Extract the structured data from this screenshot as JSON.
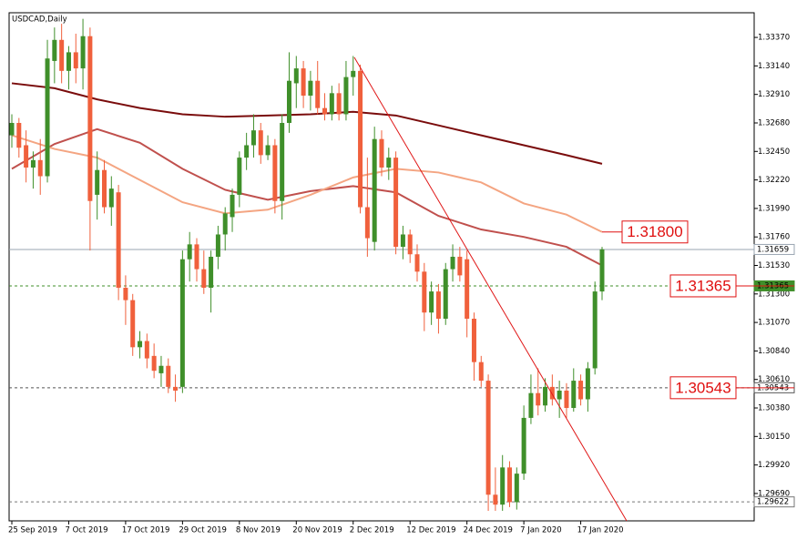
{
  "chart_data": {
    "type": "candlestick",
    "title": "USDCAD,Daily",
    "categories": [
      "25 Sep 2019",
      null,
      null,
      null,
      null,
      null,
      null,
      null,
      "7 Oct 2019",
      null,
      null,
      null,
      null,
      null,
      null,
      null,
      "17 Oct 2019",
      null,
      null,
      null,
      null,
      null,
      null,
      null,
      "29 Oct 2019",
      null,
      null,
      null,
      null,
      null,
      null,
      null,
      "8 Nov 2019",
      null,
      null,
      null,
      null,
      null,
      null,
      null,
      "20 Nov 2019",
      null,
      null,
      null,
      null,
      null,
      null,
      null,
      "2 Dec 2019",
      null,
      null,
      null,
      null,
      null,
      null,
      null,
      "12 Dec 2019",
      null,
      null,
      null,
      null,
      null,
      null,
      null,
      "24 Dec 2019",
      null,
      null,
      null,
      null,
      null,
      null,
      null,
      "7 Jan 2020",
      null,
      null,
      null,
      null,
      null,
      null,
      null,
      "17 Jan 2020",
      null,
      null,
      null
    ],
    "open": [
      1.3258,
      1.3268,
      1.325,
      1.3232,
      1.3238,
      1.3225,
      1.3318,
      1.3335,
      1.331,
      1.3325,
      1.3312,
      1.3338,
      1.321,
      1.323,
      1.32,
      1.3212,
      1.3135,
      1.3125,
      1.3087,
      1.3092,
      1.308,
      1.3066,
      1.3072,
      1.3055,
      1.3055,
      1.3158,
      1.317,
      1.315,
      1.3135,
      1.316,
      1.3178,
      1.3192,
      1.321,
      1.324,
      1.325,
      1.3262,
      1.3242,
      1.325,
      1.3205,
      1.3268,
      1.33,
      1.3312,
      1.329,
      1.3302,
      1.328,
      1.3275,
      1.3292,
      1.3275,
      1.3305,
      1.331,
      1.32,
      1.3172,
      1.3255,
      1.3232,
      1.324,
      1.3168,
      1.3178,
      1.3162,
      1.3148,
      1.3115,
      1.3132,
      1.311,
      1.315,
      1.316,
      1.3158,
      1.311,
      1.3075,
      1.306,
      1.2968,
      1.296,
      1.299,
      1.2962,
      1.2985,
      1.303,
      1.305,
      1.304,
      1.3055,
      1.3045,
      1.3052,
      1.3038,
      1.306,
      1.3045,
      1.307,
      1.3132
    ],
    "high": [
      1.3275,
      1.3272,
      1.3262,
      1.3245,
      1.3255,
      1.3335,
      1.3345,
      1.3348,
      1.333,
      1.334,
      1.3352,
      1.3345,
      1.3245,
      1.3238,
      1.3225,
      1.3218,
      1.3145,
      1.313,
      1.31,
      1.3098,
      1.309,
      1.308,
      1.3078,
      1.3065,
      1.3165,
      1.318,
      1.3175,
      1.3165,
      1.3165,
      1.3185,
      1.32,
      1.3215,
      1.3245,
      1.326,
      1.3275,
      1.3268,
      1.3258,
      1.3255,
      1.3275,
      1.3325,
      1.3322,
      1.3318,
      1.331,
      1.3318,
      1.3292,
      1.3298,
      1.33,
      1.3318,
      1.3322,
      1.3315,
      1.324,
      1.3265,
      1.3262,
      1.3248,
      1.3245,
      1.3185,
      1.3182,
      1.317,
      1.3155,
      1.314,
      1.3138,
      1.3155,
      1.317,
      1.3168,
      1.3165,
      1.3115,
      1.308,
      1.3065,
      1.299,
      1.3,
      1.2995,
      1.299,
      1.304,
      1.3065,
      1.307,
      1.3062,
      1.3065,
      1.306,
      1.3058,
      1.307,
      1.3065,
      1.3075,
      1.314,
      1.3168
    ],
    "low": [
      1.3248,
      1.324,
      1.322,
      1.3215,
      1.321,
      1.322,
      1.33,
      1.33,
      1.3295,
      1.33,
      1.3295,
      1.3165,
      1.319,
      1.3195,
      1.3185,
      1.3125,
      1.3105,
      1.308,
      1.3078,
      1.307,
      1.3062,
      1.3055,
      1.305,
      1.3043,
      1.305,
      1.314,
      1.314,
      1.313,
      1.3115,
      1.315,
      1.3165,
      1.318,
      1.32,
      1.323,
      1.324,
      1.3235,
      1.3238,
      1.3195,
      1.319,
      1.326,
      1.328,
      1.328,
      1.3278,
      1.3275,
      1.327,
      1.327,
      1.327,
      1.327,
      1.329,
      1.3195,
      1.316,
      1.3165,
      1.3225,
      1.3222,
      1.3162,
      1.3158,
      1.3155,
      1.314,
      1.31,
      1.3105,
      1.3098,
      1.3105,
      1.314,
      1.314,
      1.3095,
      1.306,
      1.3055,
      1.2955,
      1.2955,
      1.2955,
      1.2958,
      1.2956,
      1.298,
      1.3025,
      1.3032,
      1.3035,
      1.304,
      1.303,
      1.303,
      1.3035,
      1.304,
      1.3035,
      1.3065,
      1.3125
    ],
    "close": [
      1.3268,
      1.3248,
      1.3232,
      1.3238,
      1.3225,
      1.332,
      1.3335,
      1.331,
      1.3325,
      1.3312,
      1.3338,
      1.3205,
      1.323,
      1.32,
      1.3215,
      1.3135,
      1.3125,
      1.3087,
      1.3092,
      1.3078,
      1.3068,
      1.3072,
      1.3055,
      1.3052,
      1.3158,
      1.317,
      1.315,
      1.3135,
      1.316,
      1.3178,
      1.3195,
      1.321,
      1.324,
      1.325,
      1.3262,
      1.3242,
      1.325,
      1.3205,
      1.3268,
      1.3302,
      1.3312,
      1.329,
      1.3302,
      1.328,
      1.3275,
      1.3292,
      1.3275,
      1.3305,
      1.331,
      1.32,
      1.3175,
      1.3255,
      1.3232,
      1.324,
      1.3168,
      1.3178,
      1.3162,
      1.3148,
      1.3115,
      1.3132,
      1.311,
      1.315,
      1.316,
      1.3145,
      1.311,
      1.3075,
      1.306,
      1.2968,
      1.296,
      1.299,
      1.2962,
      1.2985,
      1.303,
      1.305,
      1.304,
      1.3055,
      1.3045,
      1.3052,
      1.3038,
      1.306,
      1.3045,
      1.307,
      1.3132,
      1.3166
    ],
    "up_color": "#3f8f2a",
    "down_color": "#f0603c",
    "moving_averages": [
      {
        "color": "#7a0c0c",
        "x": [
          0,
          6,
          12,
          18,
          24,
          30,
          36,
          42,
          48,
          54,
          60,
          66,
          72,
          78,
          83
        ],
        "values": [
          1.33,
          1.3296,
          1.3287,
          1.328,
          1.3275,
          1.3273,
          1.3274,
          1.3275,
          1.3277,
          1.3274,
          1.3266,
          1.3258,
          1.325,
          1.3242,
          1.3235
        ]
      },
      {
        "color": "#c0504d",
        "x": [
          0,
          6,
          12,
          18,
          24,
          30,
          36,
          42,
          48,
          54,
          60,
          66,
          72,
          78,
          83
        ],
        "values": [
          1.3231,
          1.3251,
          1.3263,
          1.3252,
          1.3231,
          1.3214,
          1.3206,
          1.3213,
          1.3217,
          1.3212,
          1.3193,
          1.3182,
          1.3176,
          1.3168,
          1.3153
        ]
      },
      {
        "color": "#f4a582",
        "x": [
          0,
          6,
          12,
          18,
          24,
          30,
          36,
          42,
          48,
          54,
          60,
          66,
          72,
          78,
          83
        ],
        "values": [
          1.3258,
          1.3247,
          1.324,
          1.3222,
          1.3204,
          1.3195,
          1.3198,
          1.321,
          1.3224,
          1.3231,
          1.3228,
          1.322,
          1.3203,
          1.3194,
          1.318
        ]
      }
    ],
    "ylim": [
      1.29469,
      1.33569
    ],
    "yticks": [
      {
        "value": 1.3337,
        "label": "1.33370"
      },
      {
        "value": 1.3314,
        "label": "1.33140"
      },
      {
        "value": 1.3291,
        "label": "1.32910"
      },
      {
        "value": 1.3268,
        "label": "1.32680"
      },
      {
        "value": 1.3245,
        "label": "1.32450"
      },
      {
        "value": 1.3222,
        "label": "1.32220"
      },
      {
        "value": 1.3199,
        "label": "1.31990"
      },
      {
        "value": 1.3176,
        "label": "1.31760"
      },
      {
        "value": 1.3153,
        "label": "1.31530"
      },
      {
        "value": 1.313,
        "label": "1.31300"
      },
      {
        "value": 1.3107,
        "label": "1.31070"
      },
      {
        "value": 1.3084,
        "label": "1.30840"
      },
      {
        "value": 1.3061,
        "label": "1.30610"
      },
      {
        "value": 1.3038,
        "label": "1.30380"
      },
      {
        "value": 1.3015,
        "label": "1.30150"
      },
      {
        "value": 1.2992,
        "label": "1.29920"
      },
      {
        "value": 1.2969,
        "label": "1.29690"
      }
    ],
    "price_lines": [
      {
        "value": 1.31659,
        "label": "1.31659",
        "color": "#9aa6b2",
        "style": "solid",
        "label_fill": "#ffffff",
        "label_color": "#000000"
      },
      {
        "value": 1.31365,
        "label": "1.31365",
        "color": "#3f8f2a",
        "style": "dashed",
        "label_fill": "#3f8f2a",
        "label_color": "#ffffff"
      },
      {
        "value": 1.30543,
        "label": "1.30543",
        "color": "#555555",
        "style": "dashed",
        "label_fill": "#ffffff",
        "label_color": "#000000"
      },
      {
        "value": 1.29622,
        "label": "1.29622",
        "color": "#777777",
        "style": "dashed",
        "label_fill": "#ffffff",
        "label_color": "#000000"
      }
    ],
    "annotations": [
      {
        "value": 1.318,
        "label": "1.31800"
      },
      {
        "value": 1.31365,
        "label": "1.31365"
      },
      {
        "value": 1.30543,
        "label": "1.30543"
      }
    ]
  }
}
